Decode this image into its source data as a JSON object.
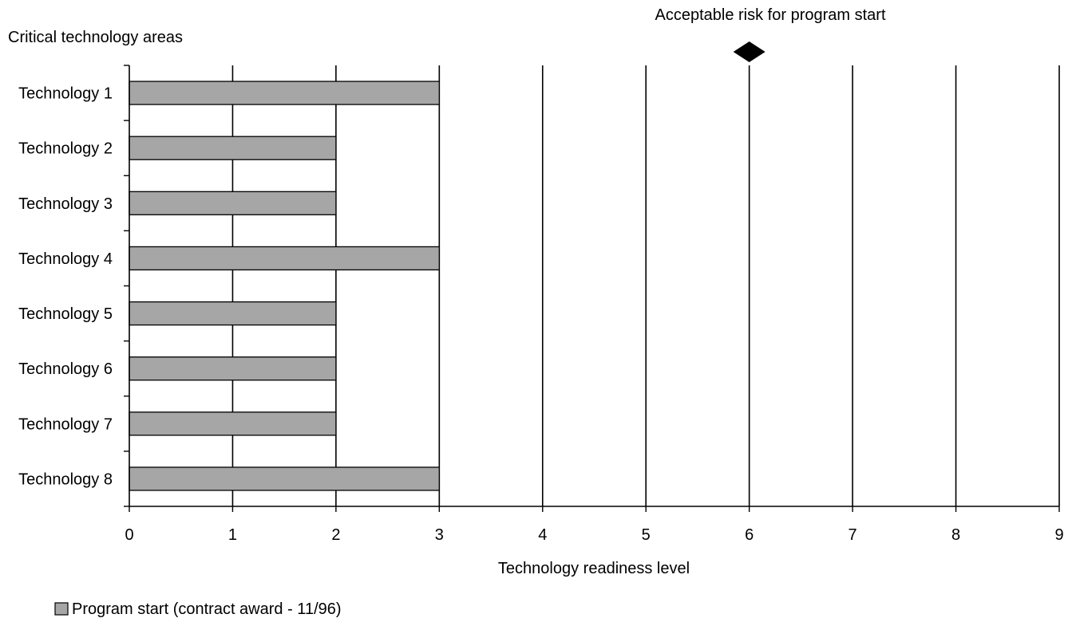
{
  "chart_data": {
    "type": "bar",
    "orientation": "horizontal",
    "title": "",
    "ylabel": "Critical technology areas",
    "xlabel": "Technology readiness level",
    "categories": [
      "Technology 1",
      "Technology 2",
      "Technology 3",
      "Technology 4",
      "Technology 5",
      "Technology 6",
      "Technology 7",
      "Technology 8"
    ],
    "series": [
      {
        "name": "Program start (contract award - 11/96)",
        "color": "#a6a6a6",
        "values": [
          3,
          2,
          2,
          3,
          2,
          2,
          2,
          3
        ]
      }
    ],
    "xlim": [
      0,
      9
    ],
    "xticks": [
      "0",
      "1",
      "2",
      "3",
      "4",
      "5",
      "6",
      "7",
      "8",
      "9"
    ],
    "grid": "vertical",
    "legend_position": "bottom-left",
    "marker": {
      "label": "Acceptable risk for program start",
      "x": 6,
      "shape": "diamond",
      "color": "#000000"
    }
  }
}
